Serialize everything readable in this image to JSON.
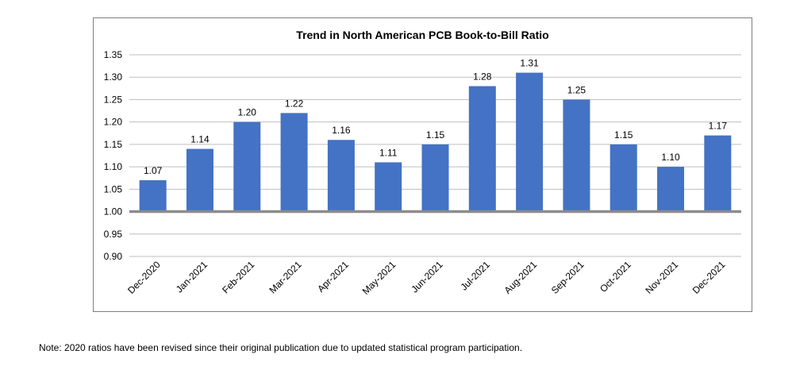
{
  "chart_data": {
    "type": "bar",
    "title": "Trend in North American PCB Book-to-Bill Ratio",
    "categories": [
      "Dec-2020",
      "Jan-2021",
      "Feb-2021",
      "Mar-2021",
      "Apr-2021",
      "May-2021",
      "Jun-2021",
      "Jul-2021",
      "Aug-2021",
      "Sep-2021",
      "Oct-2021",
      "Nov-2021",
      "Dec-2021"
    ],
    "values": [
      1.07,
      1.14,
      1.2,
      1.22,
      1.16,
      1.11,
      1.15,
      1.28,
      1.31,
      1.25,
      1.15,
      1.1,
      1.17
    ],
    "labels": [
      "1.07",
      "1.14",
      "1.20",
      "1.22",
      "1.16",
      "1.11",
      "1.15",
      "1.28",
      "1.31",
      "1.25",
      "1.15",
      "1.10",
      "1.17"
    ],
    "baseline": 1.0,
    "ylim": [
      0.9,
      1.35
    ],
    "yticks": [
      "0.90",
      "0.95",
      "1.00",
      "1.05",
      "1.10",
      "1.15",
      "1.20",
      "1.25",
      "1.30",
      "1.35"
    ],
    "xlabel": "",
    "ylabel": "",
    "grid": true,
    "legend": "none",
    "bar_color": "#4472c4",
    "baseline_color": "#8c8c8c",
    "grid_color": "#bfbfbf"
  },
  "note": "Note: 2020 ratios have been revised since their original publication due to updated statistical program participation."
}
